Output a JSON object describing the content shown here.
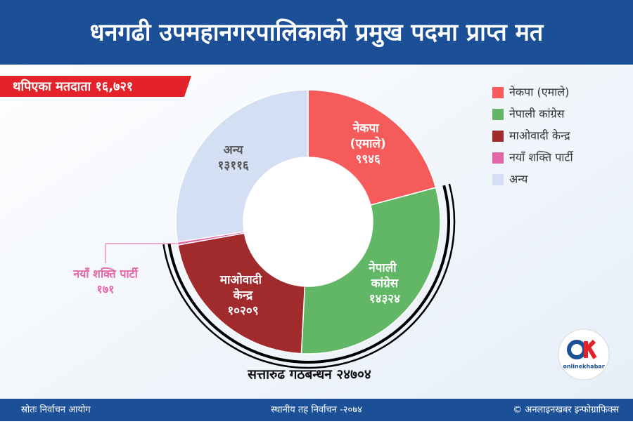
{
  "chart_data": {
    "type": "donut",
    "title": "धनगढी उपमहानगरपालिकाको प्रमुख पदमा प्राप्त मत",
    "subtitle": "थपिएका मतदाता १६,७२१",
    "categories": [
      "नेकपा (एमाले)",
      "नेपाली कांग्रेस",
      "माओवादी केन्द्र",
      "नयाँ शक्ति पार्टी",
      "अन्य"
    ],
    "values": [
      9946,
      14324,
      10209,
      171,
      13116
    ],
    "value_labels": [
      "९९४६",
      "१४३२४",
      "१०२०९",
      "१७१",
      "१३११६"
    ],
    "colors": [
      "#f65b5b",
      "#61b765",
      "#a12a2c",
      "#e466a6",
      "#d4dff3"
    ],
    "annotation": "सत्तारुढ गठबन्धन २४७०४",
    "legend": "top-right"
  },
  "footer": {
    "source": "स्रोतः निर्वाचन आयोग",
    "election": "स्थानीय तह निर्वाचन -२०७४",
    "credit": "© अनलाइनखबर इन्फोग्राफिक्स",
    "logo": "onlinekhabar"
  }
}
